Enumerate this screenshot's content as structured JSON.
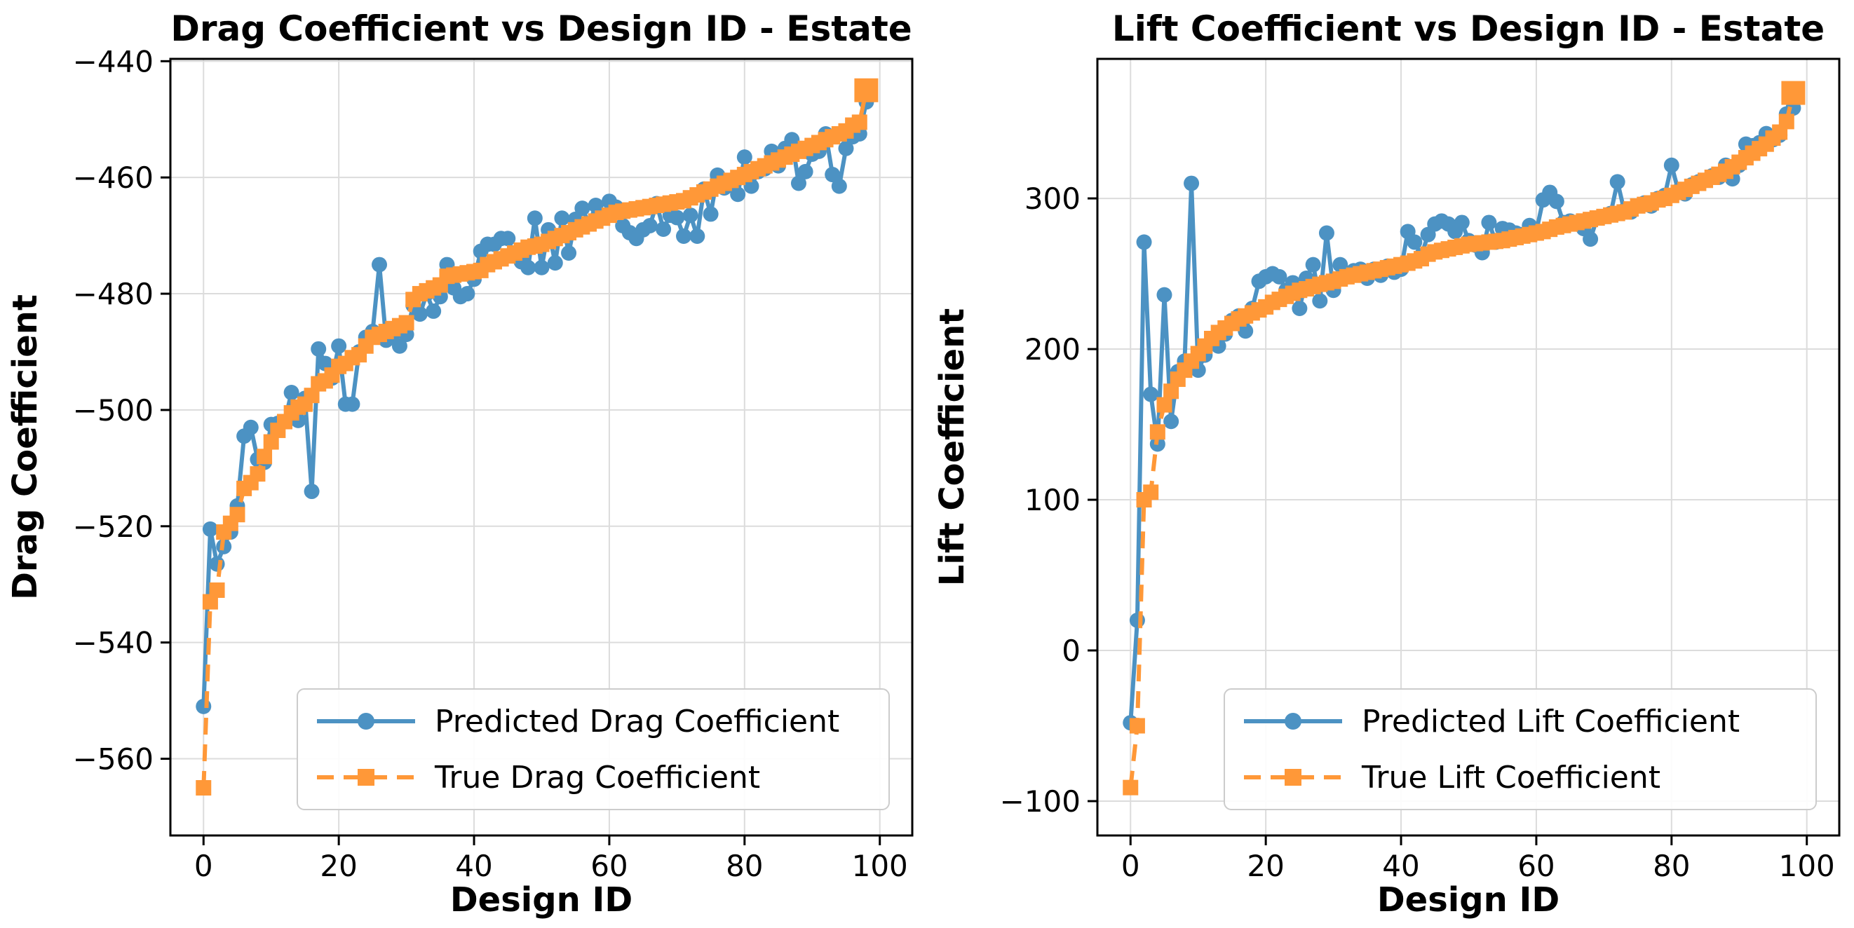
{
  "page": {
    "background": "#ffffff"
  },
  "colors": {
    "predicted": "#4c92c3",
    "true": "#ff9838",
    "grid": "#dcdcdc",
    "spine": "#000000",
    "legend_border": "#cccccc",
    "legend_bg": "#ffffff",
    "text": "#000000"
  },
  "chart_data": [
    {
      "type": "line",
      "name": "drag-chart",
      "title": "Drag Coefficient vs Design ID - Estate",
      "xlabel": "Design ID",
      "ylabel": "Drag Coefficient",
      "xticks": [
        0,
        20,
        40,
        60,
        80,
        100
      ],
      "yticks": [
        -560,
        -540,
        -520,
        -500,
        -480,
        -460,
        -440
      ],
      "xlim": [
        -4.9,
        104.8
      ],
      "ylim": [
        -573.2,
        -439.6
      ],
      "grid": true,
      "legend_position": "lower right",
      "x_start": 0,
      "x_step": 1,
      "series": [
        {
          "name": "Predicted Drag Coefficient",
          "color": "#4c92c3",
          "style": "solid",
          "marker": "circle",
          "values": [
            -551,
            -520.5,
            -526.5,
            -523.5,
            -521,
            -516.5,
            -504.5,
            -503,
            -508.5,
            -509,
            -502.5,
            -502.3,
            -502,
            -497,
            -501.8,
            -498,
            -514,
            -489.5,
            -492,
            -494.5,
            -489,
            -499,
            -499,
            -490,
            -487.5,
            -486.5,
            -475,
            -488,
            -487,
            -489,
            -487,
            -482,
            -483.5,
            -480,
            -483,
            -480.5,
            -475,
            -479,
            -480.5,
            -480,
            -477.5,
            -472.7,
            -471.5,
            -471.5,
            -470.5,
            -470.5,
            -473.5,
            -474.5,
            -475.5,
            -467,
            -475.5,
            -469,
            -474.7,
            -467,
            -473,
            -467.2,
            -465.3,
            -468,
            -464.8,
            -467,
            -464.1,
            -465.1,
            -468.3,
            -469.5,
            -470.5,
            -469,
            -468.3,
            -464.5,
            -468.9,
            -466.5,
            -466.9,
            -470.1,
            -466.5,
            -470.1,
            -462,
            -466.3,
            -459.6,
            -461.8,
            -461.2,
            -462.9,
            -456.5,
            -461.5,
            -459,
            -458.5,
            -455.5,
            -458,
            -455,
            -453.5,
            -461,
            -459,
            -456,
            -455.5,
            -452.5,
            -459.5,
            -461.5,
            -455,
            -453,
            -452.5,
            -447
          ]
        },
        {
          "name": "True Drag Coefficient",
          "color": "#ff9838",
          "style": "dashed",
          "marker": "square",
          "values": [
            -565,
            -533,
            -531,
            -521,
            -519.5,
            -518,
            -513.5,
            -512.5,
            -511,
            -508,
            -505.5,
            -503.5,
            -502,
            -500.5,
            -499.5,
            -499,
            -497.5,
            -495.5,
            -495,
            -494,
            -492.5,
            -492,
            -491,
            -490.5,
            -489,
            -487.5,
            -487,
            -486.5,
            -486,
            -485.5,
            -485,
            -481,
            -480,
            -479.5,
            -479,
            -478.5,
            -477,
            -476.8,
            -476.6,
            -476.4,
            -476.2,
            -476,
            -475,
            -474.5,
            -474,
            -473.5,
            -473,
            -472.5,
            -472,
            -471.8,
            -471.5,
            -471,
            -470.5,
            -470,
            -469.5,
            -469,
            -468.5,
            -468,
            -467.5,
            -467,
            -466.5,
            -466,
            -465.8,
            -465.6,
            -465.4,
            -465.2,
            -465,
            -464.8,
            -464.6,
            -464.4,
            -464.2,
            -464,
            -463.5,
            -463,
            -462.5,
            -462,
            -461.5,
            -461,
            -460.5,
            -460,
            -459.5,
            -459,
            -458.5,
            -458,
            -457.5,
            -457,
            -456.5,
            -456,
            -455.5,
            -455,
            -454.5,
            -454,
            -453.5,
            -453,
            -452.5,
            -452,
            -451,
            -450.5,
            -445
          ]
        }
      ]
    },
    {
      "type": "line",
      "name": "lift-chart",
      "title": "Lift Coefficient vs Design ID - Estate",
      "xlabel": "Design ID",
      "ylabel": "Lift Coefficient",
      "xticks": [
        0,
        20,
        40,
        60,
        80,
        100
      ],
      "yticks": [
        -100,
        0,
        100,
        200,
        300
      ],
      "xlim": [
        -4.9,
        104.8
      ],
      "ylim": [
        -122.8,
        392.6
      ],
      "grid": true,
      "legend_position": "lower right",
      "x_start": 0,
      "x_step": 1,
      "series": [
        {
          "name": "Predicted Lift Coefficient",
          "color": "#4c92c3",
          "style": "solid",
          "marker": "circle",
          "values": [
            -48,
            20,
            271,
            170,
            137,
            236,
            152,
            185,
            192,
            310,
            186,
            196,
            205,
            202,
            210,
            219,
            222,
            212,
            227,
            245,
            248,
            250,
            248,
            239,
            244,
            227,
            247,
            256,
            232,
            277,
            239,
            256,
            250,
            252,
            253,
            247,
            253,
            249,
            255,
            251,
            253,
            278,
            271,
            262,
            276,
            283,
            285,
            283,
            278,
            284,
            272,
            269,
            264,
            284,
            271,
            280,
            279,
            277,
            276,
            282,
            278,
            299,
            304,
            298,
            284,
            285,
            283,
            280,
            273,
            287,
            288,
            290,
            311,
            292,
            291,
            295,
            297,
            295,
            300,
            302,
            322,
            305,
            303,
            309,
            311,
            312,
            315,
            314,
            322,
            313,
            322,
            336,
            335,
            337,
            343,
            339,
            342,
            356,
            360
          ]
        },
        {
          "name": "True Lift Coefficient",
          "color": "#ff9838",
          "style": "dashed",
          "marker": "square",
          "values": [
            -91,
            -50,
            100,
            105,
            145,
            163,
            172,
            180,
            186,
            192,
            197,
            202,
            207,
            211,
            214,
            217,
            220,
            222,
            224,
            226,
            228,
            231,
            233,
            235,
            237,
            239,
            240,
            241.5,
            243,
            244,
            245,
            246.5,
            248,
            249,
            250,
            251,
            252,
            253,
            254,
            255,
            256,
            257,
            258.5,
            260,
            263,
            264.5,
            265.5,
            266.5,
            267.5,
            268.5,
            269.5,
            270,
            270.5,
            271,
            271.5,
            272,
            273,
            274,
            275,
            276,
            277,
            278,
            279.5,
            281,
            282,
            283,
            284,
            285,
            286,
            287,
            288,
            289,
            290,
            291,
            293,
            295,
            296,
            297,
            299,
            300,
            302,
            304,
            306,
            308,
            310,
            312,
            314,
            316,
            318,
            321,
            324,
            327,
            330,
            333,
            336,
            340,
            344,
            351,
            370
          ]
        }
      ]
    }
  ]
}
